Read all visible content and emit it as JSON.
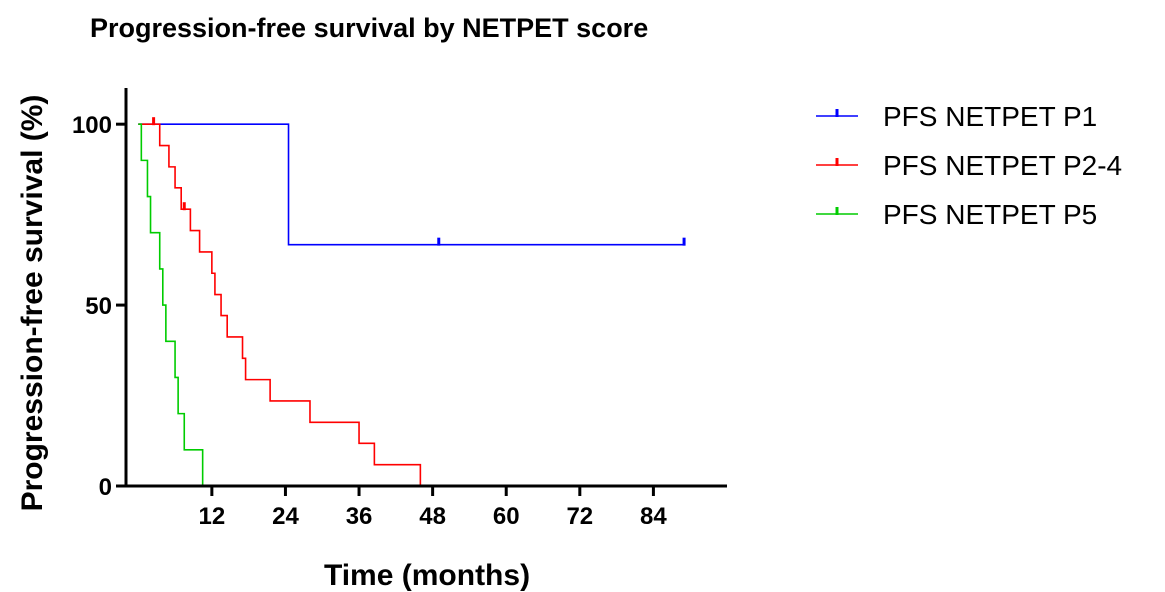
{
  "chart_data": {
    "type": "line",
    "subtype": "kaplan-meier step",
    "title": "Progression-free survival by NETPET score",
    "xlabel": "Time (months)",
    "ylabel": "Progression-free survival  (%)",
    "xlim": [
      -2,
      96
    ],
    "ylim": [
      0,
      110
    ],
    "xticks": [
      12,
      24,
      36,
      48,
      60,
      72,
      84
    ],
    "yticks": [
      0,
      50,
      100
    ],
    "grid": false,
    "legend_position": "right",
    "series": [
      {
        "name": "PFS NETPET P1",
        "color": "#0000ff",
        "points": [
          [
            0,
            100
          ],
          [
            24.5,
            100
          ],
          [
            24.5,
            66.7
          ],
          [
            89,
            66.7
          ]
        ],
        "censored": [
          [
            49,
            66.7
          ],
          [
            89,
            66.7
          ]
        ]
      },
      {
        "name": "PFS NETPET P2-4",
        "color": "#ff0000",
        "points": [
          [
            0,
            100
          ],
          [
            3.5,
            100
          ],
          [
            3.5,
            94.1
          ],
          [
            5,
            94.1
          ],
          [
            5,
            88.2
          ],
          [
            6,
            88.2
          ],
          [
            6,
            82.4
          ],
          [
            7,
            82.4
          ],
          [
            7,
            76.5
          ],
          [
            8.5,
            76.5
          ],
          [
            8.5,
            70.6
          ],
          [
            10,
            70.6
          ],
          [
            10,
            64.7
          ],
          [
            12,
            64.7
          ],
          [
            12,
            58.8
          ],
          [
            12.5,
            58.8
          ],
          [
            12.5,
            52.9
          ],
          [
            13.5,
            52.9
          ],
          [
            13.5,
            47.1
          ],
          [
            14.5,
            47.1
          ],
          [
            14.5,
            41.2
          ],
          [
            17,
            41.2
          ],
          [
            17,
            35.3
          ],
          [
            17.5,
            35.3
          ],
          [
            17.5,
            29.4
          ],
          [
            21.5,
            29.4
          ],
          [
            21.5,
            23.5
          ],
          [
            28,
            23.5
          ],
          [
            28,
            17.6
          ],
          [
            36,
            17.6
          ],
          [
            36,
            11.8
          ],
          [
            38.5,
            11.8
          ],
          [
            38.5,
            5.9
          ],
          [
            46,
            5.9
          ],
          [
            46,
            0
          ]
        ],
        "censored": [
          [
            2.5,
            100
          ],
          [
            7.5,
            76.5
          ]
        ]
      },
      {
        "name": "PFS NETPET P5",
        "color": "#00cc00",
        "points": [
          [
            0,
            100
          ],
          [
            0.5,
            100
          ],
          [
            0.5,
            90
          ],
          [
            1.5,
            90
          ],
          [
            1.5,
            80
          ],
          [
            2,
            80
          ],
          [
            2,
            70
          ],
          [
            3.5,
            70
          ],
          [
            3.5,
            60
          ],
          [
            4,
            60
          ],
          [
            4,
            50
          ],
          [
            4.5,
            50
          ],
          [
            4.5,
            40
          ],
          [
            6,
            40
          ],
          [
            6,
            30
          ],
          [
            6.5,
            30
          ],
          [
            6.5,
            20
          ],
          [
            7.5,
            20
          ],
          [
            7.5,
            10
          ],
          [
            10.5,
            10
          ],
          [
            10.5,
            0
          ]
        ],
        "censored": []
      }
    ]
  }
}
